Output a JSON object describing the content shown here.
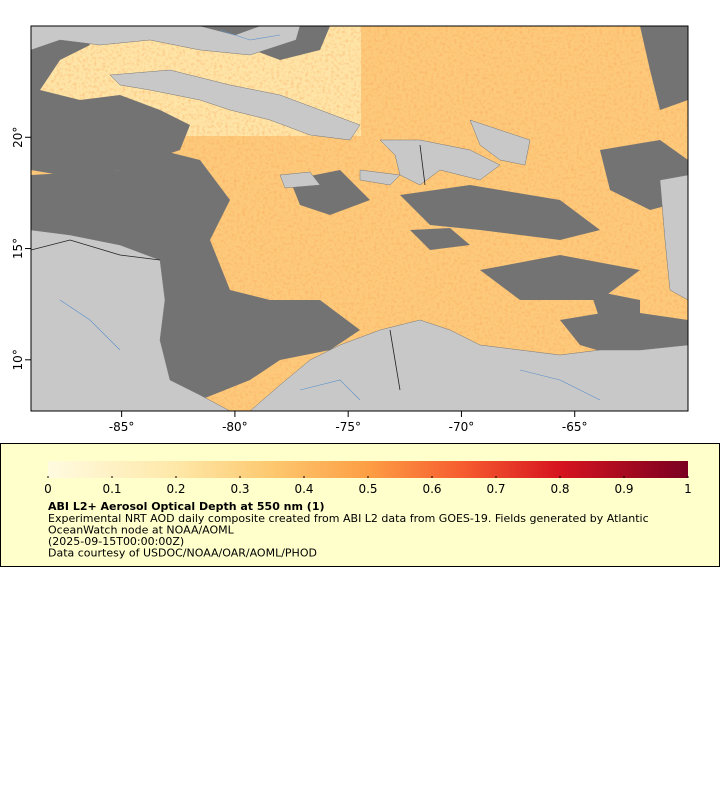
{
  "map": {
    "xlim": [
      -89,
      -60
    ],
    "ylim": [
      7.7,
      25
    ],
    "xticks": [
      {
        "value": -85,
        "label": "-85°"
      },
      {
        "value": -80,
        "label": "-80°"
      },
      {
        "value": -75,
        "label": "-75°"
      },
      {
        "value": -70,
        "label": "-70°"
      },
      {
        "value": -65,
        "label": "-65°"
      }
    ],
    "yticks": [
      {
        "value": 10,
        "label": "10°"
      },
      {
        "value": 15,
        "label": "15°"
      },
      {
        "value": 20,
        "label": "20°"
      }
    ]
  },
  "legend": {
    "title": "ABI L2+ Aerosol Optical Depth at 550 nm (1)",
    "lines": [
      "Experimental NRT AOD daily composite created from ABI L2 data from GOES-19. Fields generated by Atlantic",
      "OceanWatch node at NOAA/AOML",
      "(2025-09-15T00:00:00Z)",
      "Data courtesy of USDOC/NOAA/OAR/AOML/PHOD"
    ],
    "colorbar": {
      "lim": [
        0,
        1
      ],
      "ticks": [
        0,
        0.1,
        0.2,
        0.3,
        0.4,
        0.5,
        0.6,
        0.7,
        0.8,
        0.9,
        1
      ]
    }
  }
}
